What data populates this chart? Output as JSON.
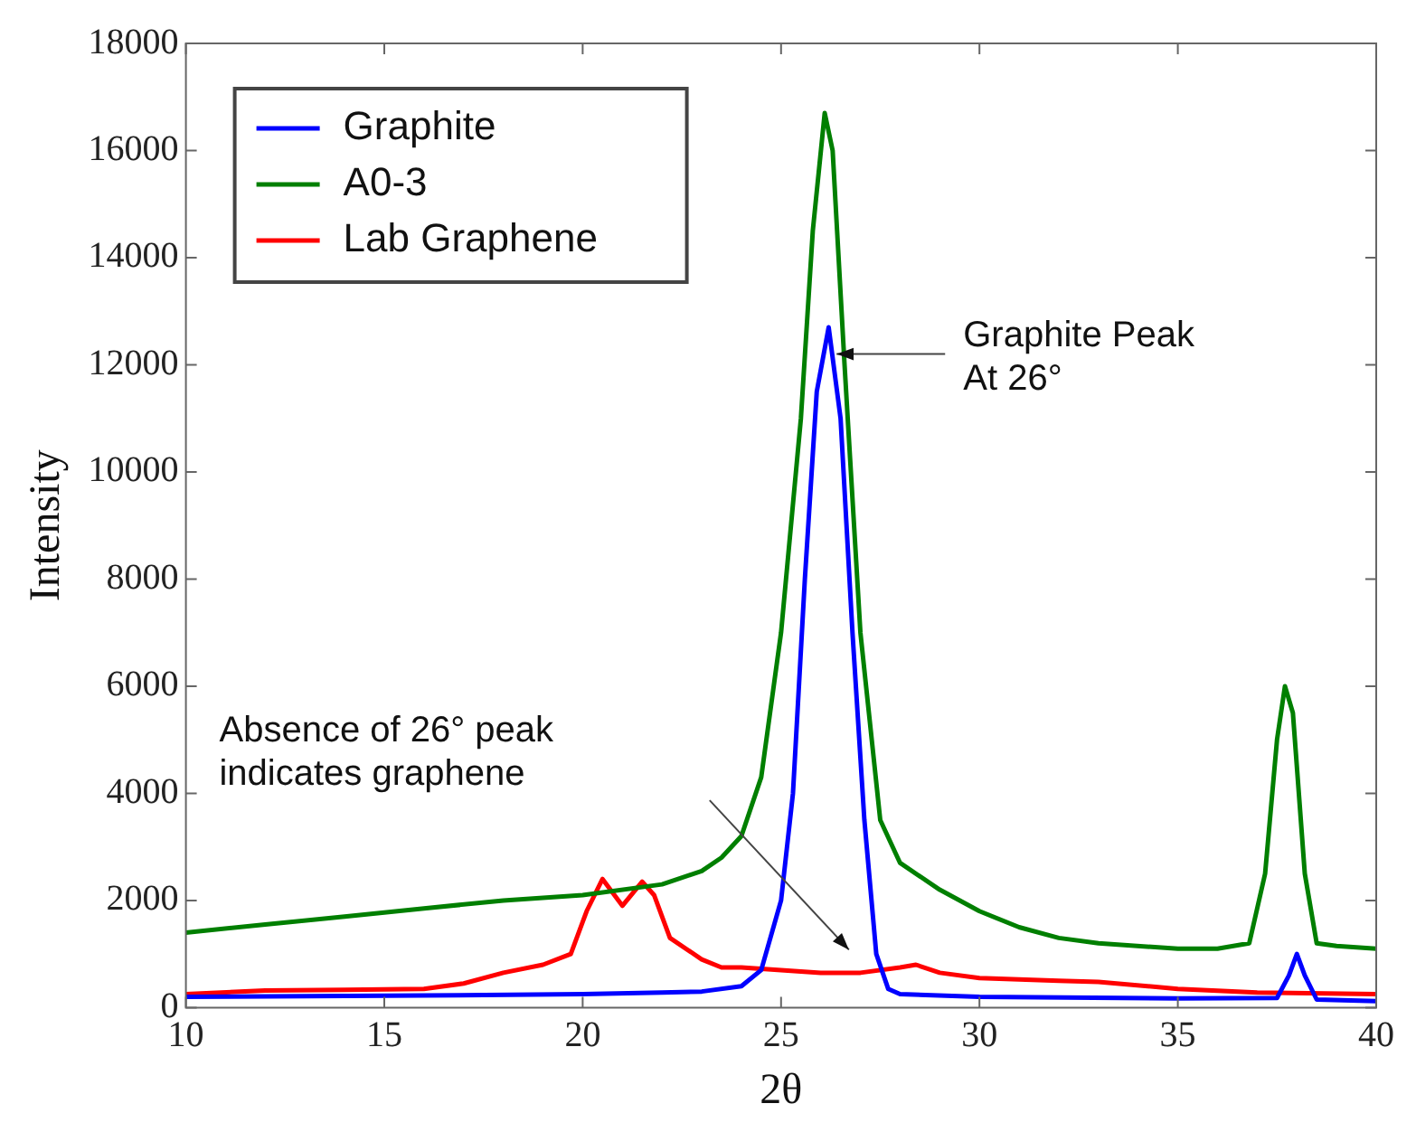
{
  "chart_data": {
    "type": "line",
    "xlabel": "2θ",
    "ylabel": "Intensity",
    "xlim": [
      10,
      40
    ],
    "xticks": [
      10,
      15,
      20,
      25,
      30,
      35,
      40
    ],
    "ylim": [
      0,
      18000
    ],
    "yticks": [
      0,
      2000,
      4000,
      6000,
      8000,
      10000,
      12000,
      14000,
      16000,
      18000
    ],
    "grid": false,
    "legend": "top left",
    "marker": "none",
    "line_style": "solid",
    "series": [
      {
        "name": "Graphite",
        "color": "#0000ff",
        "x": [
          10,
          15,
          20,
          22,
          23,
          24,
          24.5,
          25,
          25.3,
          25.6,
          25.9,
          26.2,
          26.5,
          26.8,
          27.1,
          27.4,
          27.7,
          28,
          30,
          35,
          37.5,
          37.8,
          38,
          38.2,
          38.5,
          40
        ],
        "values": [
          200,
          220,
          250,
          280,
          300,
          400,
          700,
          2000,
          4000,
          8000,
          11500,
          12700,
          11000,
          7000,
          3500,
          1000,
          350,
          250,
          200,
          170,
          180,
          600,
          1000,
          600,
          150,
          120
        ]
      },
      {
        "name": "A0-3",
        "color": "#007f00",
        "x": [
          10,
          12,
          14,
          16,
          18,
          20,
          22,
          23,
          23.5,
          24,
          24.5,
          25,
          25.5,
          25.8,
          26.1,
          26.3,
          26.6,
          27,
          27.5,
          28,
          29,
          30,
          31,
          32,
          33,
          35,
          36,
          36.8,
          37.2,
          37.5,
          37.7,
          37.9,
          38.2,
          38.5,
          39,
          40
        ],
        "values": [
          1400,
          1550,
          1700,
          1850,
          2000,
          2100,
          2300,
          2550,
          2800,
          3200,
          4300,
          7000,
          11000,
          14500,
          16700,
          16000,
          12000,
          7000,
          3500,
          2700,
          2200,
          1800,
          1500,
          1300,
          1200,
          1100,
          1100,
          1200,
          2500,
          5000,
          6000,
          5500,
          2500,
          1200,
          1150,
          1100
        ]
      },
      {
        "name": "Lab Graphene",
        "color": "#ff0000",
        "x": [
          10,
          12,
          14,
          16,
          17,
          18,
          19,
          19.7,
          20.1,
          20.5,
          21,
          21.5,
          21.8,
          22.2,
          23,
          23.5,
          24,
          25,
          26,
          27,
          28,
          28.4,
          29,
          30,
          32,
          33,
          35,
          37,
          40
        ],
        "values": [
          250,
          320,
          330,
          350,
          450,
          650,
          800,
          1000,
          1800,
          2400,
          1900,
          2350,
          2100,
          1300,
          900,
          750,
          750,
          700,
          650,
          650,
          750,
          800,
          650,
          550,
          500,
          480,
          350,
          280,
          250
        ]
      }
    ],
    "annotations": [
      {
        "text": "Graphite Peak\nAt 26°",
        "x": 26.4,
        "y": 12200
      },
      "Absence of 26° peak\nindicates graphene"
    ]
  }
}
